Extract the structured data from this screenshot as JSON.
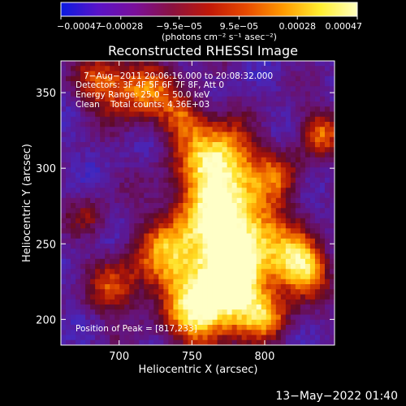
{
  "colorbar": {
    "tick_labels": [
      "−0.00047",
      "−0.00028",
      "−9.5e−05",
      "9.5e−05",
      "0.00028",
      "0.00047"
    ],
    "tick_values": [
      -0.00047,
      -0.00028,
      -9.5e-05,
      9.5e-05,
      0.00028,
      0.00047
    ],
    "range": [
      -0.00047,
      0.00047
    ],
    "unit_label": "(photons cm⁻² s⁻¹ asec⁻²)",
    "colors": [
      "#0a1be0",
      "#5a13c8",
      "#7a0f9a",
      "#8a1240",
      "#c01808",
      "#e84a00",
      "#ff9a00",
      "#ffee30",
      "#ffffc0"
    ]
  },
  "chart_data": {
    "type": "heatmap",
    "title": "Reconstructed RHESSI Image",
    "xlabel": "Heliocentric X (arcsec)",
    "ylabel": "Heliocentric Y (arcsec)",
    "xlim": [
      660,
      848
    ],
    "ylim": [
      183,
      371
    ],
    "x_ticks": [
      700,
      750,
      800
    ],
    "x_tick_labels": [
      "700",
      "750",
      "800"
    ],
    "y_ticks": [
      200,
      250,
      300,
      350
    ],
    "y_tick_labels": [
      "200",
      "250",
      "300",
      "350"
    ],
    "grid": false,
    "annotations": {
      "time": "7−Aug−2011 20:06:16.000 to 20:08:32.000",
      "detectors": "Detectors: 3F 4F 5F 6F 7F 8F, Att 0",
      "energy": "Energy Range: 25.0 − 50.0 keV",
      "clean": "Clean    Total counts: 4.36E+03",
      "peak": "Position of Peak = [817,233]"
    },
    "peak": [
      817,
      233
    ]
  },
  "footer": {
    "timestamp": "13−May−2022 01:40"
  }
}
